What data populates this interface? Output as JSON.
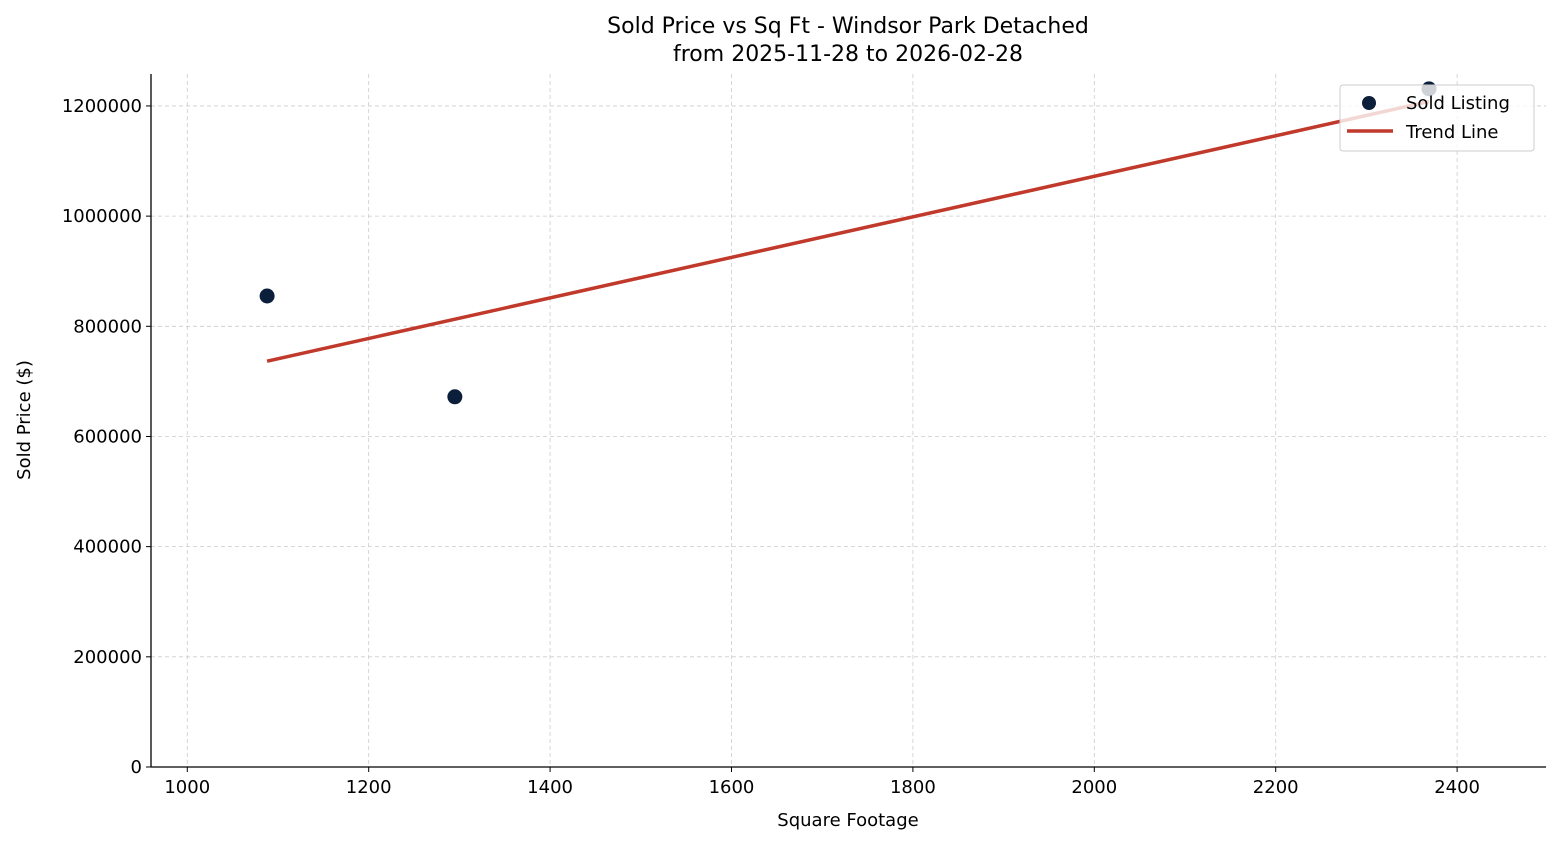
{
  "chart_data": {
    "type": "scatter",
    "title": "Sold Price vs Sq Ft - Windsor Park Detached",
    "subtitle": "from 2025-11-28 to 2026-02-28",
    "xlabel": "Square Footage",
    "ylabel": "Sold Price ($)",
    "xlim": [
      960,
      2498
    ],
    "ylim": [
      0,
      1258000
    ],
    "xticks": [
      1000,
      1200,
      1400,
      1600,
      1800,
      2000,
      2200,
      2400
    ],
    "yticks": [
      0,
      200000,
      400000,
      600000,
      800000,
      1000000,
      1200000
    ],
    "grid": true,
    "legend_position": "top-right",
    "series": [
      {
        "name": "Sold Listing",
        "kind": "scatter",
        "color": "#0b1f3a",
        "points": [
          {
            "x": 1088,
            "y": 855000
          },
          {
            "x": 1295,
            "y": 672000
          },
          {
            "x": 2369,
            "y": 1231000
          }
        ]
      },
      {
        "name": "Trend Line",
        "kind": "line",
        "color": "#c0392b",
        "points": [
          {
            "x": 1088,
            "y": 736700
          },
          {
            "x": 2369,
            "y": 1208100
          }
        ]
      }
    ]
  }
}
